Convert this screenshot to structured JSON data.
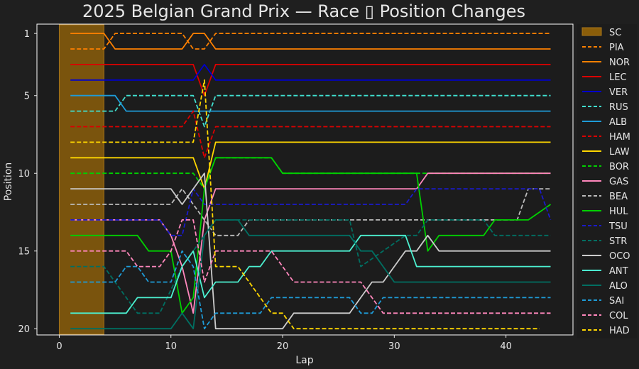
{
  "chart_data": {
    "type": "line",
    "title": "2025 Belgian Grand Prix — Race ▯ Position Changes",
    "xlabel": "Lap",
    "ylabel": "Position",
    "xlim": [
      -2,
      46
    ],
    "ylim": [
      20.4,
      0.4
    ],
    "xticks": [
      0,
      10,
      20,
      30,
      40
    ],
    "yticks": [
      1,
      5,
      10,
      15,
      20
    ],
    "grid": false,
    "legend_position": "outside-right",
    "shaded_regions": [
      {
        "name": "SC",
        "x_start": 0,
        "x_end": 4,
        "color": "#8B5E0A"
      }
    ],
    "series": [
      {
        "name": "PIA",
        "color": "#FF8000",
        "dash": true,
        "points": [
          [
            1,
            2
          ],
          [
            4,
            2
          ],
          [
            5,
            1
          ],
          [
            11,
            1
          ],
          [
            12,
            2
          ],
          [
            13,
            2
          ],
          [
            14,
            1
          ],
          [
            44,
            1
          ]
        ]
      },
      {
        "name": "NOR",
        "color": "#FF8000",
        "dash": false,
        "points": [
          [
            1,
            1
          ],
          [
            4,
            1
          ],
          [
            5,
            2
          ],
          [
            11,
            2
          ],
          [
            12,
            1
          ],
          [
            13,
            1
          ],
          [
            14,
            2
          ],
          [
            44,
            2
          ]
        ]
      },
      {
        "name": "LEC",
        "color": "#DC0000",
        "dash": false,
        "points": [
          [
            1,
            3
          ],
          [
            12,
            3
          ],
          [
            13,
            5
          ],
          [
            14,
            3
          ],
          [
            44,
            3
          ]
        ]
      },
      {
        "name": "VER",
        "color": "#0000CD",
        "dash": false,
        "points": [
          [
            1,
            4
          ],
          [
            12,
            4
          ],
          [
            13,
            3
          ],
          [
            14,
            4
          ],
          [
            44,
            4
          ]
        ]
      },
      {
        "name": "RUS",
        "color": "#40E0D0",
        "dash": true,
        "points": [
          [
            1,
            6
          ],
          [
            5,
            6
          ],
          [
            6,
            5
          ],
          [
            12,
            5
          ],
          [
            13,
            7
          ],
          [
            14,
            5
          ],
          [
            44,
            5
          ]
        ]
      },
      {
        "name": "ALB",
        "color": "#1E9BD7",
        "dash": false,
        "points": [
          [
            1,
            5
          ],
          [
            5,
            5
          ],
          [
            6,
            6
          ],
          [
            12,
            6
          ],
          [
            13,
            6
          ],
          [
            14,
            6
          ],
          [
            44,
            6
          ]
        ]
      },
      {
        "name": "HAM",
        "color": "#DC0000",
        "dash": true,
        "points": [
          [
            1,
            7
          ],
          [
            11,
            7
          ],
          [
            12,
            6
          ],
          [
            13,
            9
          ],
          [
            14,
            7
          ],
          [
            44,
            7
          ]
        ]
      },
      {
        "name": "LAW",
        "color": "#FFD700",
        "dash": false,
        "points": [
          [
            1,
            9
          ],
          [
            12,
            9
          ],
          [
            13,
            11
          ],
          [
            14,
            8
          ],
          [
            44,
            8
          ]
        ]
      },
      {
        "name": "BOR",
        "color": "#00D000",
        "dash": true,
        "points": [
          [
            1,
            10
          ],
          [
            12,
            10
          ],
          [
            13,
            11
          ],
          [
            14,
            9
          ],
          [
            19,
            9
          ],
          [
            20,
            10
          ],
          [
            44,
            10
          ]
        ]
      },
      {
        "name": "GAS",
        "color": "#FF87BC",
        "dash": false,
        "points": [
          [
            1,
            13
          ],
          [
            9,
            13
          ],
          [
            10,
            14
          ],
          [
            11,
            16
          ],
          [
            12,
            19
          ],
          [
            13,
            13
          ],
          [
            14,
            11
          ],
          [
            32,
            11
          ],
          [
            33,
            10
          ],
          [
            44,
            10
          ]
        ]
      },
      {
        "name": "BEA",
        "color": "#BBBBBB",
        "dash": true,
        "points": [
          [
            1,
            12
          ],
          [
            10,
            12
          ],
          [
            11,
            11
          ],
          [
            12,
            12
          ],
          [
            13,
            13
          ],
          [
            14,
            14
          ],
          [
            16,
            14
          ],
          [
            17,
            13
          ],
          [
            41,
            13
          ],
          [
            42,
            11
          ],
          [
            44,
            11
          ]
        ]
      },
      {
        "name": "HUL",
        "color": "#00D000",
        "dash": false,
        "points": [
          [
            1,
            14
          ],
          [
            7,
            14
          ],
          [
            8,
            15
          ],
          [
            10,
            15
          ],
          [
            11,
            19
          ],
          [
            12,
            18
          ],
          [
            13,
            11
          ],
          [
            14,
            9
          ],
          [
            19,
            9
          ],
          [
            20,
            10
          ],
          [
            32,
            10
          ],
          [
            33,
            15
          ],
          [
            34,
            14
          ],
          [
            38,
            14
          ],
          [
            39,
            13
          ],
          [
            42,
            13
          ],
          [
            44,
            12
          ]
        ]
      },
      {
        "name": "TSU",
        "color": "#1A1ACC",
        "dash": true,
        "points": [
          [
            1,
            13
          ],
          [
            9,
            13
          ],
          [
            10,
            14
          ],
          [
            11,
            14
          ],
          [
            12,
            11
          ],
          [
            13,
            12
          ],
          [
            14,
            12
          ],
          [
            31,
            12
          ],
          [
            32,
            11
          ],
          [
            43,
            11
          ],
          [
            44,
            13
          ]
        ]
      },
      {
        "name": "STR",
        "color": "#006F62",
        "dash": true,
        "points": [
          [
            1,
            16
          ],
          [
            4,
            16
          ],
          [
            6,
            18
          ],
          [
            7,
            19
          ],
          [
            9,
            19
          ],
          [
            11,
            16
          ],
          [
            12,
            15
          ],
          [
            13,
            14
          ],
          [
            14,
            13
          ],
          [
            17,
            13
          ],
          [
            18,
            13
          ],
          [
            26,
            13
          ],
          [
            27,
            16
          ],
          [
            29,
            15
          ],
          [
            31,
            14
          ],
          [
            32,
            14
          ],
          [
            33,
            13
          ],
          [
            38,
            13
          ],
          [
            39,
            14
          ],
          [
            44,
            14
          ]
        ]
      },
      {
        "name": "OCO",
        "color": "#CCCCCC",
        "dash": false,
        "points": [
          [
            1,
            11
          ],
          [
            10,
            11
          ],
          [
            11,
            12
          ],
          [
            12,
            11
          ],
          [
            13,
            10
          ],
          [
            14,
            20
          ],
          [
            20,
            20
          ],
          [
            21,
            19
          ],
          [
            26,
            19
          ],
          [
            27,
            18
          ],
          [
            28,
            17
          ],
          [
            29,
            17
          ],
          [
            30,
            16
          ],
          [
            31,
            15
          ],
          [
            32,
            15
          ],
          [
            33,
            14
          ],
          [
            34,
            15
          ],
          [
            44,
            15
          ]
        ]
      },
      {
        "name": "ANT",
        "color": "#4CF0D0",
        "dash": false,
        "points": [
          [
            1,
            19
          ],
          [
            6,
            19
          ],
          [
            7,
            18
          ],
          [
            10,
            18
          ],
          [
            11,
            16
          ],
          [
            12,
            15
          ],
          [
            13,
            18
          ],
          [
            14,
            17
          ],
          [
            16,
            17
          ],
          [
            17,
            16
          ],
          [
            18,
            16
          ],
          [
            19,
            15
          ],
          [
            26,
            15
          ],
          [
            27,
            14
          ],
          [
            31,
            14
          ],
          [
            32,
            16
          ],
          [
            44,
            16
          ]
        ]
      },
      {
        "name": "ALO",
        "color": "#006F62",
        "dash": false,
        "points": [
          [
            1,
            20
          ],
          [
            10,
            20
          ],
          [
            11,
            19
          ],
          [
            12,
            20
          ],
          [
            13,
            14
          ],
          [
            14,
            13
          ],
          [
            16,
            13
          ],
          [
            17,
            14
          ],
          [
            26,
            14
          ],
          [
            27,
            15
          ],
          [
            28,
            15
          ],
          [
            29,
            16
          ],
          [
            30,
            17
          ],
          [
            44,
            17
          ]
        ]
      },
      {
        "name": "SAI",
        "color": "#1E9BD7",
        "dash": true,
        "points": [
          [
            1,
            17
          ],
          [
            5,
            17
          ],
          [
            6,
            16
          ],
          [
            7,
            16
          ],
          [
            8,
            17
          ],
          [
            10,
            17
          ],
          [
            11,
            15
          ],
          [
            12,
            16
          ],
          [
            13,
            20
          ],
          [
            14,
            19
          ],
          [
            18,
            19
          ],
          [
            19,
            18
          ],
          [
            26,
            18
          ],
          [
            27,
            19
          ],
          [
            28,
            19
          ],
          [
            29,
            18
          ],
          [
            44,
            18
          ]
        ]
      },
      {
        "name": "COL",
        "color": "#FF87BC",
        "dash": true,
        "points": [
          [
            1,
            15
          ],
          [
            6,
            15
          ],
          [
            7,
            16
          ],
          [
            9,
            16
          ],
          [
            10,
            15
          ],
          [
            11,
            13
          ],
          [
            12,
            13
          ],
          [
            13,
            17
          ],
          [
            14,
            15
          ],
          [
            19,
            15
          ],
          [
            20,
            16
          ],
          [
            21,
            17
          ],
          [
            27,
            17
          ],
          [
            28,
            18
          ],
          [
            29,
            19
          ],
          [
            44,
            19
          ]
        ]
      },
      {
        "name": "HAD",
        "color": "#FFD700",
        "dash": true,
        "points": [
          [
            1,
            8
          ],
          [
            12,
            8
          ],
          [
            13,
            4
          ],
          [
            14,
            16
          ],
          [
            16,
            16
          ],
          [
            17,
            17
          ],
          [
            18,
            18
          ],
          [
            19,
            19
          ],
          [
            20,
            19
          ],
          [
            21,
            20
          ],
          [
            43,
            20
          ]
        ]
      }
    ]
  }
}
